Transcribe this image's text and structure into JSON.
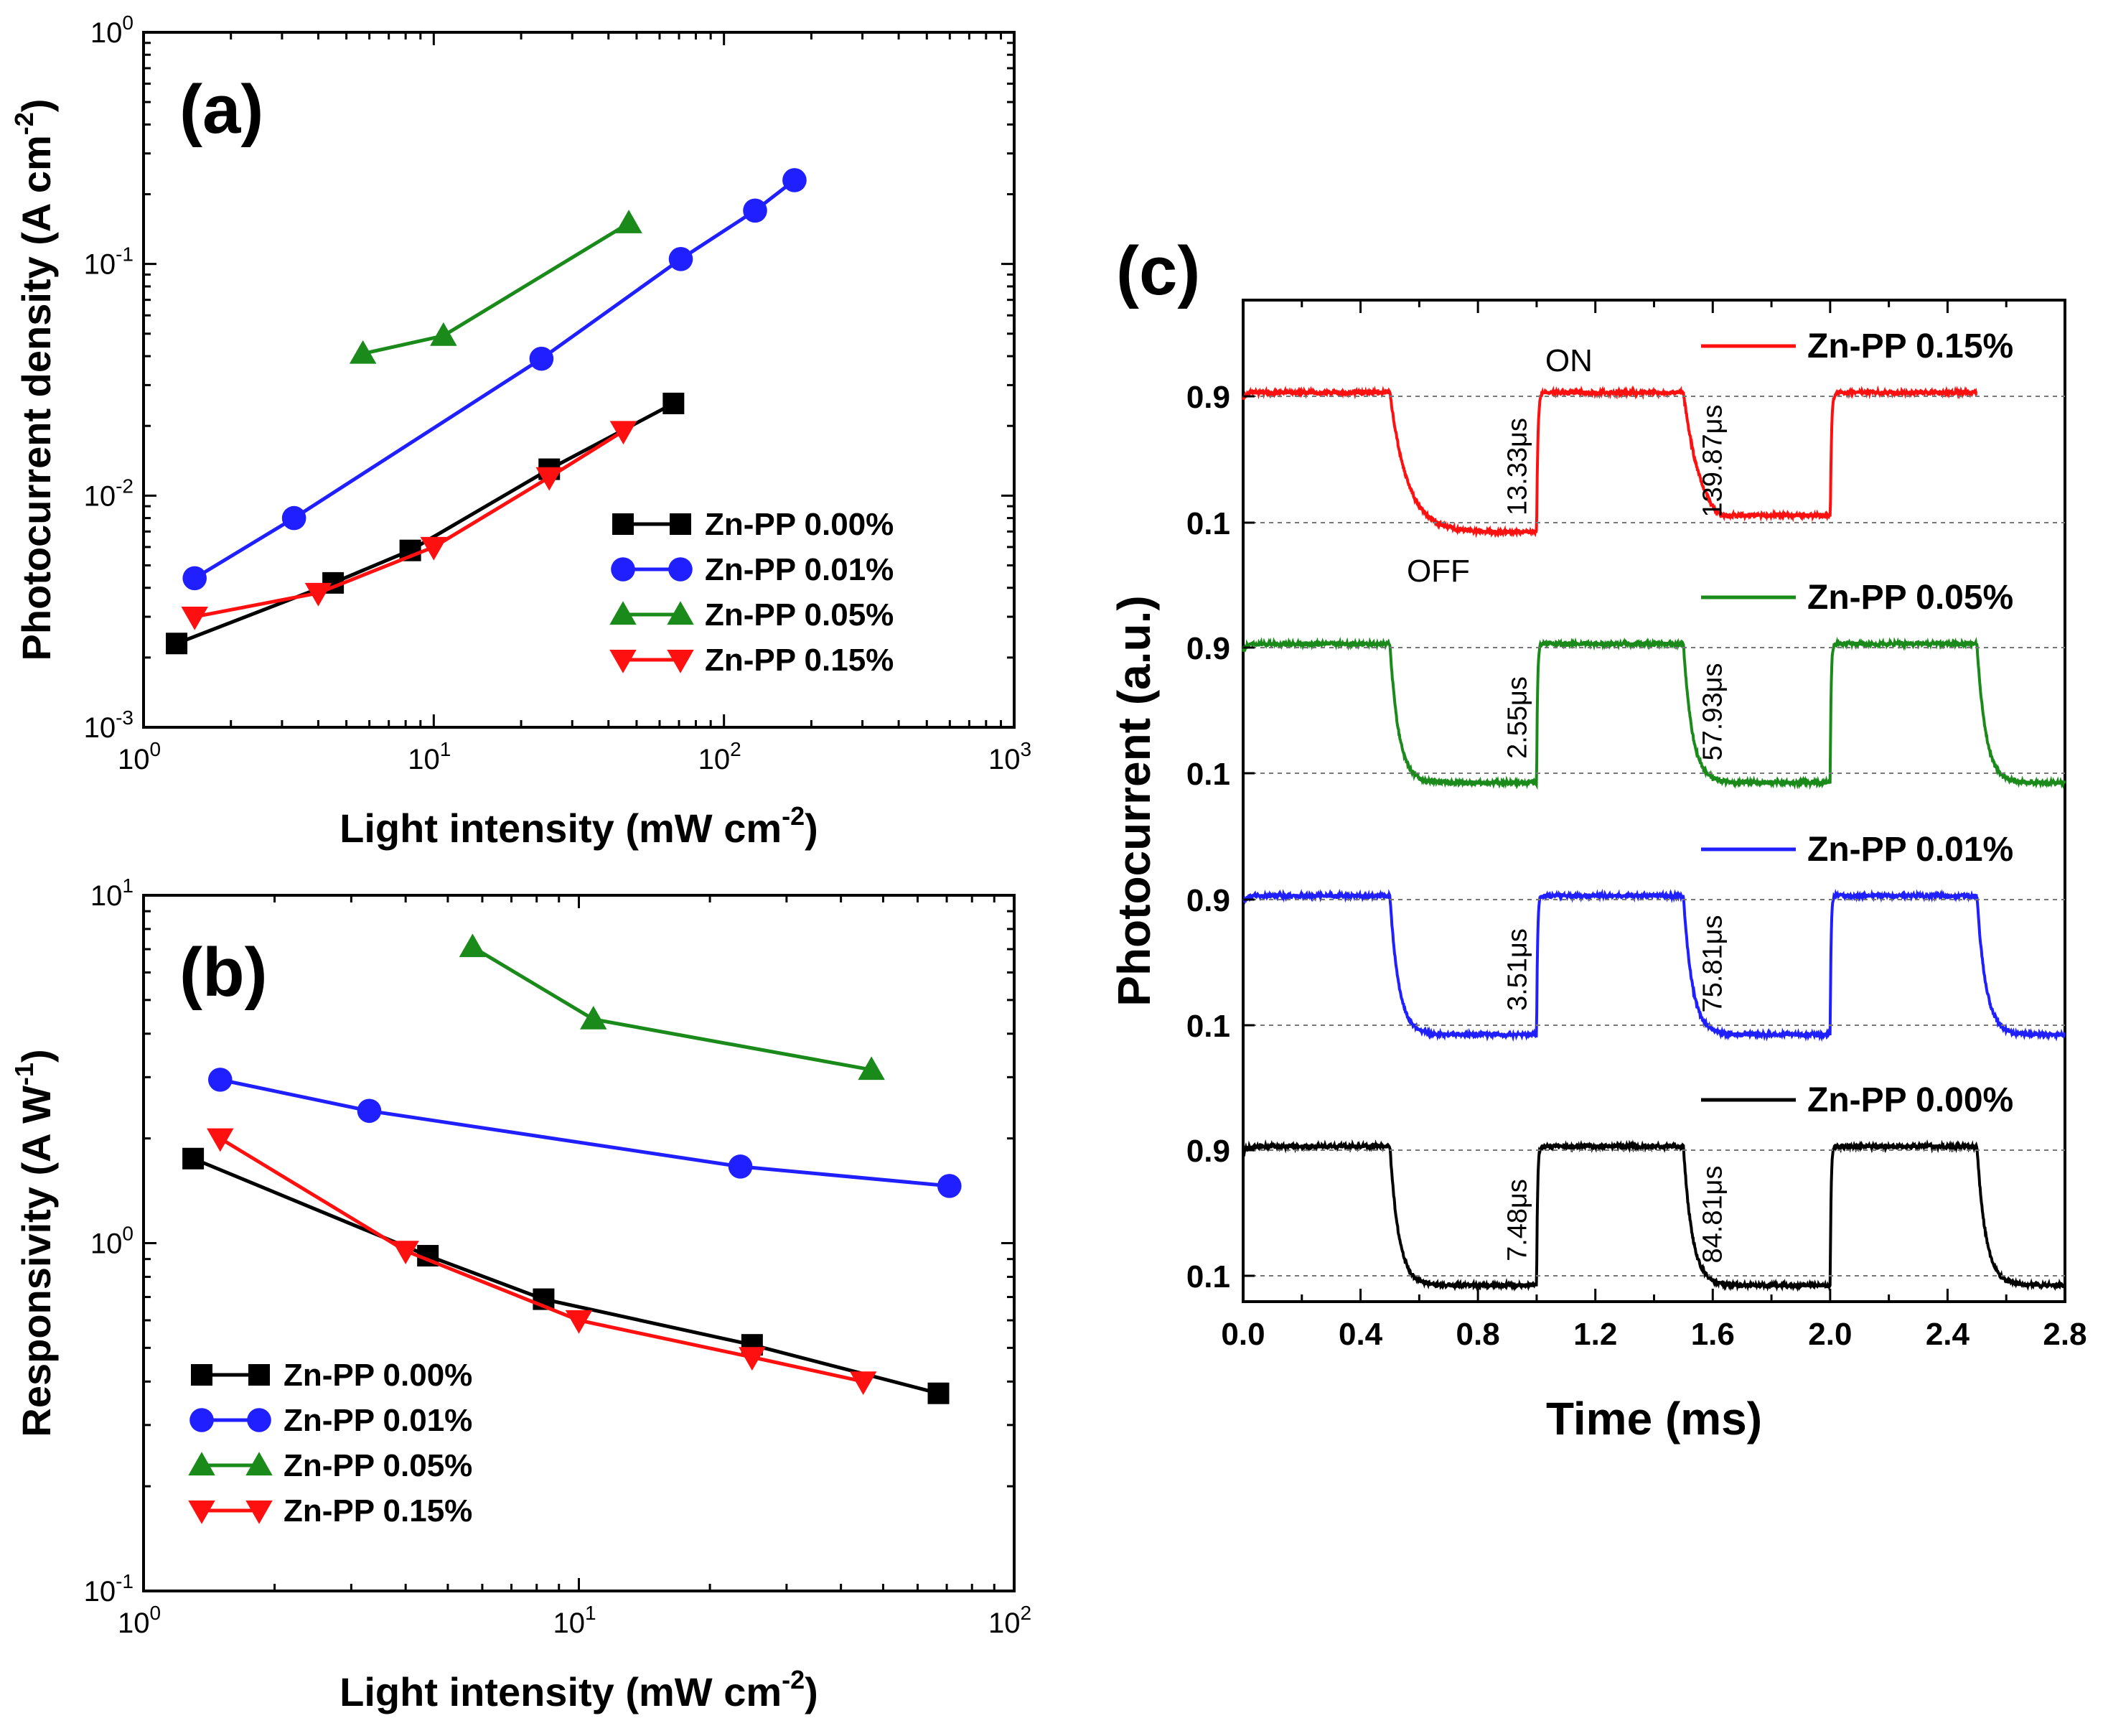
{
  "chart_data": [
    {
      "panel": "(a)",
      "type": "line",
      "xscale": "log",
      "yscale": "log",
      "xlim": [
        1,
        1000
      ],
      "ylim": [
        0.001,
        1
      ],
      "xlabel": "Light intensity (mW cm",
      "xlabel_sup": "-2",
      "xlabel_end": ")",
      "ylabel": "Photocurrent density (A cm",
      "ylabel_sup": "-2",
      "ylabel_end": ")",
      "xticks": [
        {
          "value": 1,
          "base": "10",
          "exp": "0"
        },
        {
          "value": 10,
          "base": "10",
          "exp": "1"
        },
        {
          "value": 100,
          "base": "10",
          "exp": "2"
        },
        {
          "value": 1000,
          "base": "10",
          "exp": "3"
        }
      ],
      "yticks": [
        {
          "value": 0.001,
          "base": "10",
          "exp": "-3"
        },
        {
          "value": 0.01,
          "base": "10",
          "exp": "-2"
        },
        {
          "value": 0.1,
          "base": "10",
          "exp": "-1"
        },
        {
          "value": 1,
          "base": "10",
          "exp": "0"
        }
      ],
      "legend_position": "lower-right",
      "series": [
        {
          "name": "Zn-PP 0.00%",
          "color": "#000000",
          "marker": "square",
          "x": [
            1.3,
            4.5,
            8.3,
            25,
            67
          ],
          "y": [
            0.0023,
            0.0042,
            0.0058,
            0.013,
            0.025
          ]
        },
        {
          "name": "Zn-PP 0.01%",
          "color": "#1f1fff",
          "marker": "circle",
          "x": [
            1.5,
            3.3,
            23.5,
            71,
            128,
            175
          ],
          "y": [
            0.0044,
            0.008,
            0.039,
            0.105,
            0.17,
            0.23
          ]
        },
        {
          "name": "Zn-PP 0.05%",
          "color": "#1a8a1a",
          "marker": "triangle-up",
          "x": [
            5.7,
            10.8,
            47
          ],
          "y": [
            0.041,
            0.049,
            0.15
          ]
        },
        {
          "name": "Zn-PP 0.15%",
          "color": "#ff1010",
          "marker": "triangle-down",
          "x": [
            1.5,
            4,
            10,
            25,
            45
          ],
          "y": [
            0.003,
            0.0038,
            0.006,
            0.012,
            0.019
          ]
        }
      ]
    },
    {
      "panel": "(b)",
      "type": "line",
      "xscale": "log",
      "yscale": "log",
      "xlim": [
        1,
        100
      ],
      "ylim": [
        0.1,
        10
      ],
      "xlabel": "Light intensity (mW cm",
      "xlabel_sup": "-2",
      "xlabel_end": ")",
      "ylabel": "Responsivity (A W",
      "ylabel_sup": "-1",
      "ylabel_end": ")",
      "xticks": [
        {
          "value": 1,
          "base": "10",
          "exp": "0"
        },
        {
          "value": 10,
          "base": "10",
          "exp": "1"
        },
        {
          "value": 100,
          "base": "10",
          "exp": "2"
        }
      ],
      "yticks": [
        {
          "value": 0.1,
          "base": "10",
          "exp": "-1"
        },
        {
          "value": 1,
          "base": "10",
          "exp": "0"
        },
        {
          "value": 10,
          "base": "10",
          "exp": "1"
        }
      ],
      "legend_position": "lower-left",
      "series": [
        {
          "name": "Zn-PP 0.00%",
          "color": "#000000",
          "marker": "square",
          "x": [
            1.3,
            4.5,
            8.3,
            25,
            67
          ],
          "y": [
            1.75,
            0.92,
            0.69,
            0.51,
            0.37
          ]
        },
        {
          "name": "Zn-PP 0.01%",
          "color": "#1f1fff",
          "marker": "circle",
          "x": [
            1.5,
            3.3,
            23.5,
            71
          ],
          "y": [
            2.95,
            2.4,
            1.66,
            1.46
          ]
        },
        {
          "name": "Zn-PP 0.05%",
          "color": "#1a8a1a",
          "marker": "triangle-up",
          "x": [
            5.7,
            10.8,
            47
          ],
          "y": [
            7.1,
            4.4,
            3.15
          ]
        },
        {
          "name": "Zn-PP 0.15%",
          "color": "#ff1010",
          "marker": "triangle-down",
          "x": [
            1.5,
            4,
            10,
            25,
            45
          ],
          "y": [
            2.0,
            0.95,
            0.6,
            0.47,
            0.4
          ]
        }
      ]
    },
    {
      "panel": "(c)",
      "type": "line",
      "xlabel": "Time (ms)",
      "ylabel": "Photocurrent (a.u.)",
      "xlim": [
        0,
        2.8
      ],
      "xticks": [
        "0.0",
        "0.4",
        "0.8",
        "1.2",
        "1.6",
        "2.0",
        "2.4",
        "2.8"
      ],
      "levels": [
        "0.9",
        "0.1"
      ],
      "state_labels": {
        "on": "ON",
        "off": "OFF"
      },
      "series": [
        {
          "name": "Zn-PP 0.15%",
          "color": "#ff1010",
          "end": 2.5,
          "tau_off": 0.06,
          "tau_on": 0.004,
          "annotations": [
            "13.33μs",
            "139.87μs"
          ]
        },
        {
          "name": "Zn-PP 0.05%",
          "color": "#1a8a1a",
          "end": 2.8,
          "tau_off": 0.03,
          "tau_on": 0.003,
          "annotations": [
            "2.55μs",
            "57.93μs"
          ]
        },
        {
          "name": "Zn-PP 0.01%",
          "color": "#1f1fff",
          "end": 2.8,
          "tau_off": 0.03,
          "tau_on": 0.003,
          "annotations": [
            "3.51μs",
            "75.81μs"
          ]
        },
        {
          "name": "Zn-PP 0.00%",
          "color": "#000000",
          "end": 2.8,
          "tau_off": 0.03,
          "tau_on": 0.003,
          "annotations": [
            "7.48μs",
            "84.81μs"
          ]
        }
      ]
    }
  ]
}
